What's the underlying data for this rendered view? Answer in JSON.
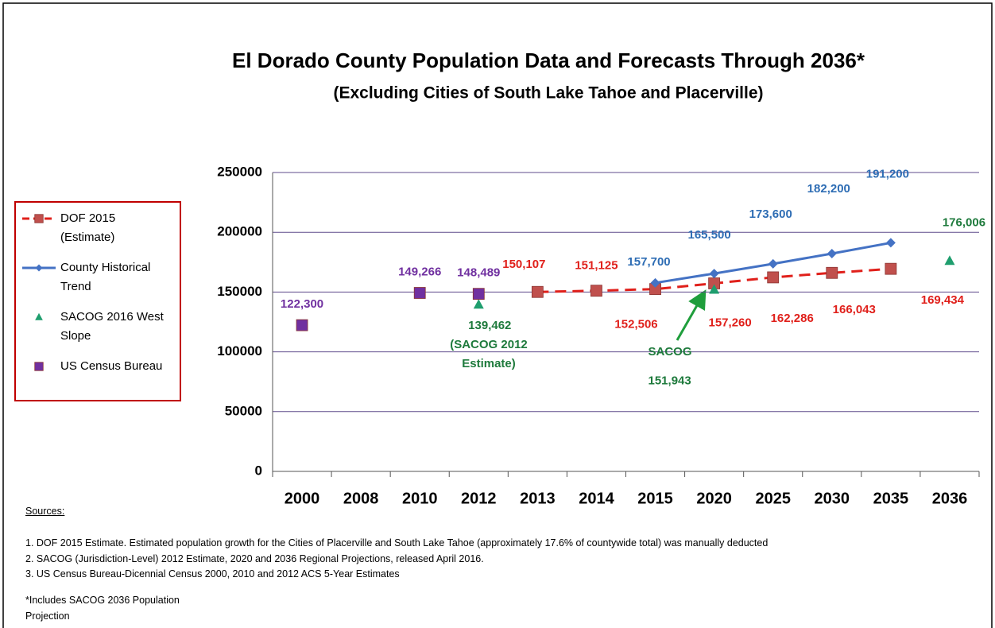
{
  "chart_data": {
    "type": "line",
    "title": "El Dorado County Population Data and Forecasts Through 2036*",
    "subtitle": "(Excluding Cities of South Lake Tahoe and Placerville)",
    "categories": [
      "2000",
      "2008",
      "2010",
      "2012",
      "2013",
      "2014",
      "2015",
      "2020",
      "2025",
      "2030",
      "2035",
      "2036"
    ],
    "ylim": [
      0,
      250000
    ],
    "yticks": [
      0,
      50000,
      100000,
      150000,
      200000,
      250000
    ],
    "grid": true,
    "legend": "left",
    "series": [
      {
        "name": "DOF 2015 (Estimate)",
        "color": "#c0504d",
        "label_color": "#e0201b",
        "marker": "square",
        "line_style": "dashed",
        "values": [
          null,
          null,
          null,
          null,
          150107,
          151125,
          152506,
          157260,
          162286,
          166043,
          169434,
          null
        ],
        "value_labels": [
          null,
          null,
          null,
          null,
          "150,107",
          "151,125",
          "152,506",
          "157,260",
          "162,286",
          "166,043",
          "169,434",
          null
        ]
      },
      {
        "name": "County Historical Trend",
        "color": "#4472c4",
        "label_color": "#2e6db4",
        "marker": "diamond",
        "line_style": "solid",
        "values": [
          null,
          null,
          null,
          null,
          null,
          null,
          157700,
          165500,
          173600,
          182200,
          191200,
          null
        ],
        "value_labels": [
          null,
          null,
          null,
          null,
          null,
          null,
          "157,700",
          "165,500",
          "173,600",
          "182,200",
          "191,200",
          null
        ]
      },
      {
        "name": "SACOG 2016 West Slope",
        "color": "#1f9e6e",
        "label_color": "#1e7a3c",
        "marker": "triangle",
        "values": [
          null,
          null,
          null,
          139462,
          null,
          null,
          null,
          151943,
          null,
          null,
          null,
          176006
        ],
        "value_labels": [
          null,
          null,
          null,
          "139,462",
          null,
          null,
          null,
          "151,943",
          null,
          null,
          null,
          "176,006"
        ]
      },
      {
        "name": "US Census Bureau",
        "color": "#7030a0",
        "label_color": "#7030a0",
        "marker": "square",
        "values": [
          122300,
          null,
          149266,
          148489,
          null,
          null,
          null,
          null,
          null,
          null,
          null,
          null
        ],
        "value_labels": [
          "122,300",
          null,
          "149,266",
          "148,489",
          null,
          null,
          null,
          null,
          null,
          null,
          null,
          null
        ]
      }
    ],
    "annotations": [
      "(SACOG 2012",
      "Estimate)",
      "SACOG"
    ]
  },
  "sources_label": "Sources:",
  "notes": [
    "1.  DOF 2015 Estimate.  Estimated population growth for the  Cities of Placerville and South Lake Tahoe  (approximately 17.6% of countywide total) was manually deducted",
    "2.  SACOG  (Jurisdiction-Level) 2012 Estimate, 2020 and 2036 Regional Projections, released April 2016.",
    "3.  US Census Bureau-Dicennial Census 2000, 2010 and 2012 ACS 5-Year Estimates"
  ],
  "footnote": "*Includes SACOG 2036 Population Projection"
}
